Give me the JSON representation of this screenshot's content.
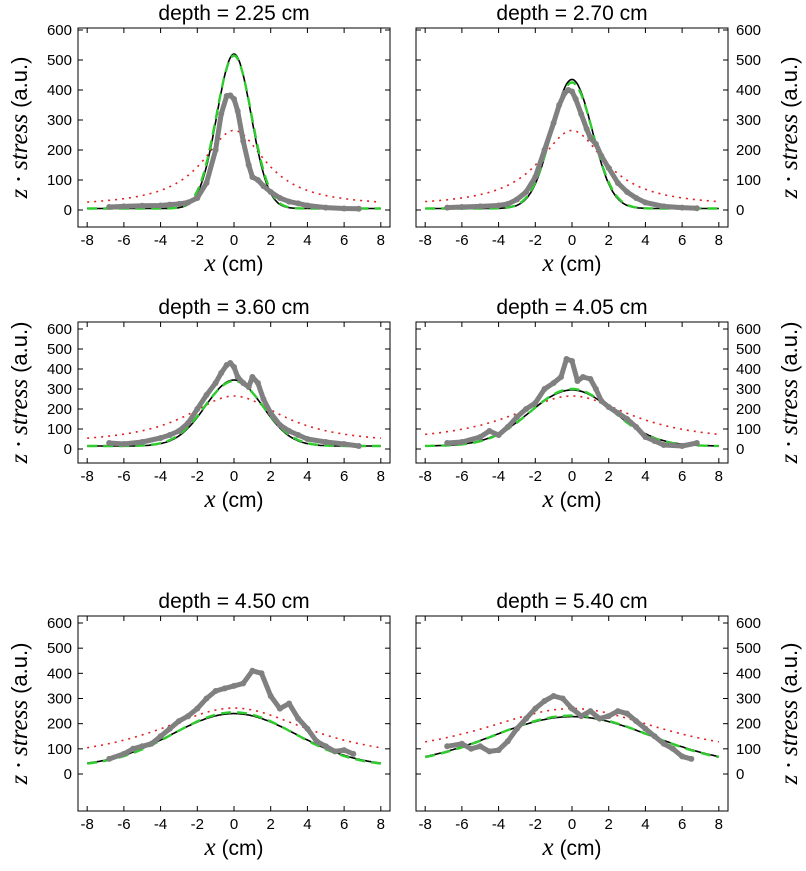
{
  "chart_data": [
    {
      "type": "line",
      "title": "depth = 2.25 cm",
      "xlabel_var": "x",
      "xlabel_unit": "(cm)",
      "ylabel_var": "z · stress",
      "ylabel_unit": "(a.u.)",
      "ylabel_side": "left",
      "xlim": [
        -8.5,
        8.5
      ],
      "ylim": [
        -20,
        600
      ],
      "xticks": [
        -8,
        -6,
        -4,
        -2,
        0,
        2,
        4,
        6,
        8
      ],
      "yticks": [
        0,
        100,
        200,
        300,
        400,
        500,
        600
      ],
      "series": [
        {
          "style": "measured-gray-markers",
          "color": "#808080",
          "x": [
            -6.8,
            -6,
            -5,
            -4,
            -3.5,
            -3,
            -2.5,
            -2,
            -1.5,
            -1,
            -0.7,
            -0.4,
            -0.2,
            0,
            0.2,
            0.5,
            0.8,
            1,
            1.3,
            1.6,
            2,
            2.5,
            3,
            3.5,
            4,
            5,
            6,
            6.8
          ],
          "y": [
            10,
            12,
            14,
            15,
            18,
            20,
            25,
            40,
            90,
            200,
            320,
            380,
            382,
            370,
            330,
            230,
            150,
            110,
            100,
            80,
            60,
            40,
            28,
            22,
            15,
            8,
            5,
            4
          ]
        },
        {
          "style": "black-solid",
          "color": "#000000",
          "peak": 520,
          "width": 0.93,
          "shape": "gaussian",
          "baseline": 5
        },
        {
          "style": "green-dashed",
          "color": "#2ecc2e",
          "peak": 515,
          "width": 0.96,
          "shape": "gaussian",
          "baseline": 5
        },
        {
          "style": "red-dotted",
          "color": "#e02020",
          "peak": 265,
          "width": 2.1,
          "shape": "lorentzian",
          "baseline": 10
        }
      ]
    },
    {
      "type": "line",
      "title": "depth = 2.70 cm",
      "xlabel_var": "x",
      "xlabel_unit": "(cm)",
      "ylabel_var": "z · stress",
      "ylabel_unit": "(a.u.)",
      "ylabel_side": "right",
      "xlim": [
        -8.5,
        8.5
      ],
      "ylim": [
        -20,
        600
      ],
      "xticks": [
        -8,
        -6,
        -4,
        -2,
        0,
        2,
        4,
        6,
        8
      ],
      "yticks": [
        0,
        100,
        200,
        300,
        400,
        500,
        600
      ],
      "series": [
        {
          "style": "measured-gray-markers",
          "color": "#808080",
          "x": [
            -6.8,
            -6,
            -5,
            -4,
            -3.5,
            -3,
            -2.5,
            -2,
            -1.5,
            -1,
            -0.7,
            -0.4,
            -0.2,
            0,
            0.2,
            0.5,
            0.8,
            1,
            1.3,
            1.6,
            2,
            2.5,
            3,
            3.5,
            4,
            5,
            6,
            6.8
          ],
          "y": [
            8,
            10,
            12,
            15,
            20,
            35,
            60,
            110,
            200,
            290,
            350,
            390,
            400,
            395,
            370,
            320,
            270,
            240,
            220,
            180,
            140,
            90,
            60,
            40,
            25,
            12,
            8,
            6
          ]
        },
        {
          "style": "black-solid",
          "color": "#000000",
          "peak": 435,
          "width": 1.1,
          "shape": "gaussian",
          "baseline": 5
        },
        {
          "style": "green-dashed",
          "color": "#2ecc2e",
          "peak": 425,
          "width": 1.13,
          "shape": "gaussian",
          "baseline": 5
        },
        {
          "style": "red-dotted",
          "color": "#e02020",
          "peak": 265,
          "width": 2.2,
          "shape": "lorentzian",
          "baseline": 10
        }
      ]
    },
    {
      "type": "line",
      "title": "depth = 3.60 cm",
      "xlabel_var": "x",
      "xlabel_unit": "(cm)",
      "ylabel_var": "z · stress",
      "ylabel_unit": "(a.u.)",
      "ylabel_side": "left",
      "xlim": [
        -8.5,
        8.5
      ],
      "ylim": [
        -20,
        600
      ],
      "xticks": [
        -8,
        -6,
        -4,
        -2,
        0,
        2,
        4,
        6,
        8
      ],
      "yticks": [
        0,
        100,
        200,
        300,
        400,
        500,
        600
      ],
      "series": [
        {
          "style": "measured-gray-markers",
          "color": "#808080",
          "x": [
            -6.8,
            -6,
            -5,
            -4,
            -3.5,
            -3,
            -2.5,
            -2,
            -1.5,
            -1,
            -0.7,
            -0.4,
            -0.2,
            0,
            0.2,
            0.5,
            0.8,
            1,
            1.3,
            1.6,
            2,
            2.5,
            3,
            3.5,
            4,
            5,
            6,
            6.8
          ],
          "y": [
            30,
            25,
            35,
            55,
            70,
            90,
            130,
            200,
            270,
            330,
            380,
            420,
            430,
            410,
            360,
            330,
            310,
            360,
            330,
            250,
            180,
            120,
            90,
            70,
            50,
            35,
            25,
            15
          ]
        },
        {
          "style": "black-solid",
          "color": "#000000",
          "peak": 345,
          "width": 1.55,
          "shape": "gaussian",
          "baseline": 15
        },
        {
          "style": "green-dashed",
          "color": "#2ecc2e",
          "peak": 340,
          "width": 1.6,
          "shape": "gaussian",
          "baseline": 15
        },
        {
          "style": "red-dotted",
          "color": "#e02020",
          "peak": 265,
          "width": 3.2,
          "shape": "lorentzian",
          "baseline": 20
        }
      ]
    },
    {
      "type": "line",
      "title": "depth = 4.05 cm",
      "xlabel_var": "x",
      "xlabel_unit": "(cm)",
      "ylabel_var": "z · stress",
      "ylabel_unit": "(a.u.)",
      "ylabel_side": "right",
      "xlim": [
        -8.5,
        8.5
      ],
      "ylim": [
        -20,
        600
      ],
      "xticks": [
        -8,
        -6,
        -4,
        -2,
        0,
        2,
        4,
        6,
        8
      ],
      "yticks": [
        0,
        100,
        200,
        300,
        400,
        500,
        600
      ],
      "series": [
        {
          "style": "measured-gray-markers",
          "color": "#808080",
          "x": [
            -6.8,
            -6,
            -5,
            -4.5,
            -4,
            -3.5,
            -3,
            -2.5,
            -2,
            -1.5,
            -1,
            -0.6,
            -0.3,
            0,
            0.3,
            0.6,
            1,
            1.3,
            1.6,
            2,
            2.5,
            3,
            3.5,
            4,
            4.5,
            5,
            6,
            6.8
          ],
          "y": [
            30,
            35,
            60,
            90,
            70,
            110,
            160,
            200,
            230,
            300,
            330,
            360,
            450,
            440,
            340,
            360,
            350,
            300,
            240,
            210,
            180,
            150,
            110,
            60,
            40,
            20,
            15,
            30
          ]
        },
        {
          "style": "black-solid",
          "color": "#000000",
          "peak": 295,
          "width": 2.3,
          "shape": "gaussian",
          "baseline": 15
        },
        {
          "style": "green-dashed",
          "color": "#2ecc2e",
          "peak": 300,
          "width": 2.25,
          "shape": "gaussian",
          "baseline": 15
        },
        {
          "style": "red-dotted",
          "color": "#e02020",
          "peak": 265,
          "width": 4.0,
          "shape": "lorentzian",
          "baseline": 25
        }
      ]
    },
    {
      "type": "line",
      "title": "depth = 4.50 cm",
      "xlabel_var": "x",
      "xlabel_unit": "(cm)",
      "ylabel_var": "z · stress",
      "ylabel_unit": "(a.u.)",
      "ylabel_side": "left",
      "xlim": [
        -8.5,
        8.5
      ],
      "ylim": [
        -20,
        600
      ],
      "xticks": [
        -8,
        -6,
        -4,
        -2,
        0,
        2,
        4,
        6,
        8
      ],
      "yticks": [
        0,
        100,
        200,
        300,
        400,
        500,
        600
      ],
      "series": [
        {
          "style": "measured-gray-markers",
          "color": "#808080",
          "x": [
            -6.8,
            -6,
            -5.5,
            -5,
            -4.5,
            -4,
            -3.5,
            -3,
            -2.5,
            -2,
            -1.5,
            -1,
            -0.5,
            0,
            0.5,
            1,
            1.5,
            2,
            2.5,
            3,
            3.5,
            4,
            4.5,
            5,
            5.5,
            6,
            6.5
          ],
          "y": [
            60,
            80,
            100,
            110,
            120,
            150,
            180,
            210,
            230,
            260,
            300,
            330,
            340,
            350,
            360,
            410,
            400,
            310,
            260,
            280,
            220,
            180,
            130,
            110,
            90,
            95,
            80
          ]
        },
        {
          "style": "black-solid",
          "color": "#000000",
          "peak": 240,
          "width": 3.4,
          "shape": "gaussian",
          "baseline": 30
        },
        {
          "style": "green-dashed",
          "color": "#2ecc2e",
          "peak": 245,
          "width": 3.3,
          "shape": "gaussian",
          "baseline": 30
        },
        {
          "style": "red-dotted",
          "color": "#e02020",
          "peak": 262,
          "width": 5.3,
          "shape": "lorentzian",
          "baseline": 35
        }
      ]
    },
    {
      "type": "line",
      "title": "depth = 5.40 cm",
      "xlabel_var": "x",
      "xlabel_unit": "(cm)",
      "ylabel_var": "z · stress",
      "ylabel_unit": "(a.u.)",
      "ylabel_side": "right",
      "xlim": [
        -8.5,
        8.5
      ],
      "ylim": [
        -20,
        600
      ],
      "xticks": [
        -8,
        -6,
        -4,
        -2,
        0,
        2,
        4,
        6,
        8
      ],
      "yticks": [
        0,
        100,
        200,
        300,
        400,
        500,
        600
      ],
      "series": [
        {
          "style": "measured-gray-markers",
          "color": "#808080",
          "x": [
            -6.8,
            -6,
            -5.5,
            -5,
            -4.5,
            -4,
            -3.5,
            -3,
            -2.5,
            -2,
            -1.5,
            -1,
            -0.5,
            0,
            0.5,
            1,
            1.5,
            2,
            2.5,
            3,
            3.5,
            4,
            4.5,
            5,
            5.5,
            6,
            6.5
          ],
          "y": [
            110,
            120,
            100,
            110,
            90,
            95,
            130,
            180,
            220,
            260,
            290,
            310,
            300,
            260,
            230,
            250,
            220,
            230,
            250,
            240,
            210,
            180,
            150,
            120,
            100,
            70,
            60
          ]
        },
        {
          "style": "black-solid",
          "color": "#000000",
          "peak": 228,
          "width": 4.3,
          "shape": "gaussian",
          "baseline": 35
        },
        {
          "style": "green-dashed",
          "color": "#2ecc2e",
          "peak": 232,
          "width": 4.2,
          "shape": "gaussian",
          "baseline": 35
        },
        {
          "style": "red-dotted",
          "color": "#e02020",
          "peak": 260,
          "width": 6.5,
          "shape": "lorentzian",
          "baseline": 40
        }
      ]
    }
  ]
}
